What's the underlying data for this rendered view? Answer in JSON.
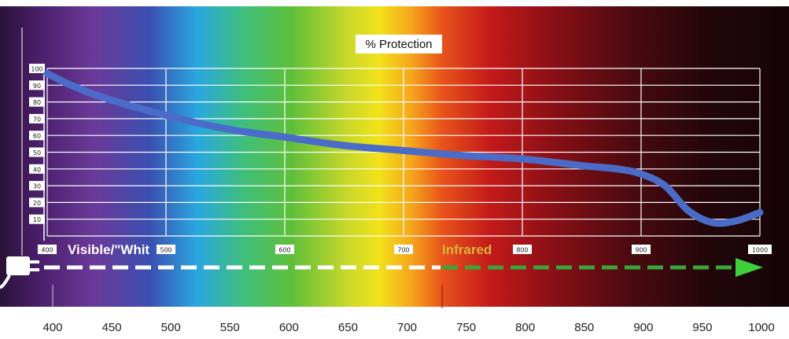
{
  "chart_data": {
    "type": "line",
    "title": "% Protection",
    "xlabel": "",
    "ylabel": "",
    "xlim": [
      400,
      1000
    ],
    "ylim": [
      0,
      100
    ],
    "grid": true,
    "top_x_ticks": [
      "400",
      "500",
      "600",
      "700",
      "800",
      "900",
      "1000"
    ],
    "y_ticks": [
      "100",
      "90",
      "80",
      "70",
      "60",
      "50",
      "40",
      "30",
      "20",
      "10"
    ],
    "bottom_x_ticks": [
      "400",
      "450",
      "500",
      "550",
      "600",
      "650",
      "700",
      "750",
      "800",
      "850",
      "900",
      "950",
      "1000"
    ],
    "bands": [
      {
        "label": "Visible/\"Whit",
        "color": "#ffffff"
      },
      {
        "label": "Infrared",
        "color": "#d8b23a"
      }
    ],
    "series": [
      {
        "color": "#4a6cc8",
        "x": [
          400,
          420,
          450,
          500,
          550,
          600,
          650,
          700,
          750,
          800,
          850,
          880,
          900,
          920,
          940,
          960,
          980,
          1000
        ],
        "y": [
          97,
          90,
          82,
          72,
          64,
          59,
          54,
          51,
          48,
          46,
          42,
          40,
          37,
          30,
          15,
          8,
          9,
          14
        ]
      }
    ]
  }
}
